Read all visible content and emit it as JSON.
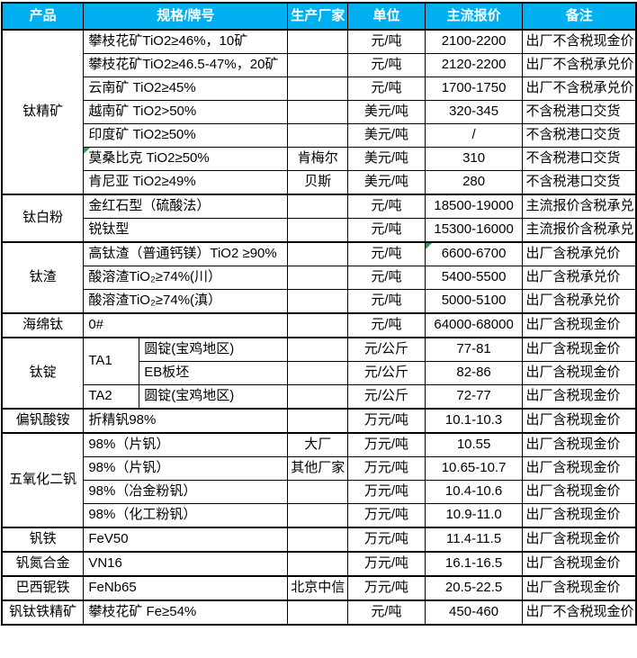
{
  "colors": {
    "header_bg": "#00B0F0",
    "header_text": "#FFFFFF",
    "border": "#000000",
    "comment_marker": "#2E9E44"
  },
  "table": {
    "headers": {
      "product": "产品",
      "spec": "规格/牌号",
      "maker": "生产厂家",
      "unit": "单位",
      "price": "主流报价",
      "note": "备注"
    },
    "groups": [
      {
        "product": "钛精矿",
        "rows": [
          {
            "spec": "攀枝花矿TiO2≥46%，10矿",
            "maker": "",
            "unit": "元/吨",
            "price": "2100-2200",
            "note": "出厂不含税现金价"
          },
          {
            "spec": "攀枝花矿TiO2≥46.5-47%，20矿",
            "maker": "",
            "unit": "元/吨",
            "price": "2120-2200",
            "note": "出厂不含税承兑价"
          },
          {
            "spec": "云南矿 TiO2≥45%",
            "maker": "",
            "unit": "元/吨",
            "price": "1700-1750",
            "note": "出厂不含税承兑价"
          },
          {
            "spec": "越南矿 TiO2>50%",
            "maker": "",
            "unit": "美元/吨",
            "price": "320-345",
            "note": "不含税港口交货"
          },
          {
            "spec": "印度矿 TiO2≥50%",
            "maker": "",
            "unit": "美元/吨",
            "price": "/",
            "note": "不含税港口交货"
          },
          {
            "spec": "莫桑比克 TiO2≥50%",
            "maker": "肯梅尔",
            "unit": "美元/吨",
            "price": "310",
            "note": "不含税港口交货",
            "comment_marker": "spec"
          },
          {
            "spec": "肯尼亚 TiO2≥49%",
            "maker": "贝斯",
            "unit": "美元/吨",
            "price": "280",
            "note": "不含税港口交货"
          }
        ]
      },
      {
        "product": "钛白粉",
        "rows": [
          {
            "spec": "金红石型（硫酸法）",
            "maker": "",
            "unit": "元/吨",
            "price": "18500-19000",
            "note": "主流报价含税承兑"
          },
          {
            "spec": "锐钛型",
            "maker": "",
            "unit": "元/吨",
            "price": "15300-16000",
            "note": "主流报价含税承兑"
          }
        ]
      },
      {
        "product": "钛渣",
        "rows": [
          {
            "spec": "高钛渣（普通钙镁）TiO2 ≥90%",
            "maker": "",
            "unit": "元/吨",
            "price": "6600-6700",
            "note": "出厂含税承兑价",
            "comment_marker": "price"
          },
          {
            "spec": "酸溶渣TiO₂≥74%(川）",
            "maker": "",
            "unit": "元/吨",
            "price": "5400-5500",
            "note": "出厂含税承兑价"
          },
          {
            "spec": "酸溶渣TiO₂≥74%(滇）",
            "maker": "",
            "unit": "元/吨",
            "price": "5000-5100",
            "note": "出厂含税承兑价"
          }
        ]
      },
      {
        "product": "海绵钛",
        "rows": [
          {
            "spec": "0#",
            "maker": "",
            "unit": "元/吨",
            "price": "64000-68000",
            "note": "出厂含税现金价"
          }
        ]
      },
      {
        "product": "钛锭",
        "rows": [
          {
            "grade": "TA1",
            "spec": "圆锭(宝鸡地区)",
            "maker": "",
            "unit": "元/公斤",
            "price": "77-81",
            "note": "出厂含税现金价"
          },
          {
            "spec": "EB板坯",
            "maker": "",
            "unit": "元/公斤",
            "price": "82-86",
            "note": "出厂含税现金价"
          },
          {
            "grade": "TA2",
            "spec": "圆锭(宝鸡地区)",
            "maker": "",
            "unit": "元/公斤",
            "price": "72-77",
            "note": "出厂含税现金价"
          }
        ]
      },
      {
        "product": "偏钒酸铵",
        "rows": [
          {
            "spec": "折精钒98%",
            "maker": "",
            "unit": "万元/吨",
            "price": "10.1-10.3",
            "note": "出厂含税现金价"
          }
        ]
      },
      {
        "product": "五氧化二钒",
        "rows": [
          {
            "spec": "98%（片钒）",
            "maker": "大厂",
            "unit": "万元/吨",
            "price": "10.55",
            "note": "出厂含税现金价"
          },
          {
            "spec": "98%（片钒）",
            "maker": "其他厂家",
            "unit": "万元/吨",
            "price": "10.65-10.7",
            "note": "出厂含税现金价"
          },
          {
            "spec": "98%（冶金粉钒）",
            "maker": "",
            "unit": "万元/吨",
            "price": "10.4-10.6",
            "note": "出厂含税现金价"
          },
          {
            "spec": "98%（化工粉钒）",
            "maker": "",
            "unit": "万元/吨",
            "price": "10.9-11.0",
            "note": "出厂含税现金价"
          }
        ]
      },
      {
        "product": "钒铁",
        "rows": [
          {
            "spec": "FeV50",
            "maker": "",
            "unit": "万元/吨",
            "price": "11.4-11.5",
            "note": "出厂含税现金价"
          }
        ]
      },
      {
        "product": "钒氮合金",
        "rows": [
          {
            "spec": "VN16",
            "maker": "",
            "unit": "万元/吨",
            "price": "16.1-16.5",
            "note": "出厂含税现金价"
          }
        ]
      },
      {
        "product": "巴西铌铁",
        "rows": [
          {
            "spec": "FeNb65",
            "maker": "北京中信",
            "unit": "万元/吨",
            "price": "20.5-22.5",
            "note": "出厂含税现金价"
          }
        ]
      },
      {
        "product": "钒钛铁精矿",
        "rows": [
          {
            "spec": "攀枝花矿 Fe≥54%",
            "maker": "",
            "unit": "元/吨",
            "price": "450-460",
            "note": "出厂不含税现金价"
          }
        ]
      }
    ]
  }
}
